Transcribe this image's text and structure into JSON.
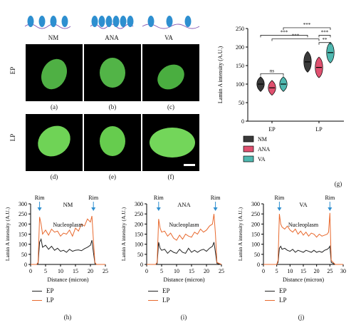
{
  "colors": {
    "ep_line": "#222222",
    "lp_line": "#e8692e",
    "cell_green": "#5ec24a",
    "nm": "#3a3a3a",
    "ana": "#e0506f",
    "va": "#4fb8b0",
    "chromatin": "#2e8fd0"
  },
  "conditions": [
    "NM",
    "ANA",
    "VA"
  ],
  "rows": [
    "EP",
    "LP"
  ],
  "image_labels": [
    "(a)",
    "(b)",
    "(c)",
    "(d)",
    "(e)",
    "(f)"
  ],
  "panel_g_label": "(g)",
  "profile_labels": [
    "(h)",
    "(i)",
    "(j)"
  ],
  "annotations": {
    "rim": "Rim",
    "nucleoplasm": "Nucleoplasm"
  },
  "chart_data": [
    {
      "type": "violin",
      "panel": "(g)",
      "ylabel": "Lamin A intensity (A.U.)",
      "categories": [
        "EP",
        "LP"
      ],
      "ylim": [
        0,
        250
      ],
      "yticks": [
        0,
        50,
        100,
        150,
        200,
        250
      ],
      "legend_placement": "bottom",
      "series": [
        {
          "name": "NM",
          "medians": [
            100,
            160
          ]
        },
        {
          "name": "ANA",
          "medians": [
            90,
            145
          ]
        },
        {
          "name": "VA",
          "medians": [
            100,
            185
          ]
        }
      ],
      "significance": [
        "ns",
        "**",
        "***",
        "***",
        "***",
        "***"
      ]
    },
    {
      "type": "line",
      "panel": "(h)",
      "title": "NM",
      "xlabel": "Distance (micron)",
      "ylabel": "Lamin A intensity (A.U.)",
      "xlim": [
        0,
        25
      ],
      "ylim": [
        0,
        300
      ],
      "xticks": [
        0,
        5,
        10,
        15,
        20,
        25
      ],
      "yticks": [
        0,
        50,
        100,
        150,
        200,
        250,
        300
      ],
      "rim_positions": [
        3,
        21
      ],
      "series": [
        {
          "name": "EP",
          "x": [
            0,
            1,
            2,
            2.5,
            3,
            3.5,
            4,
            5,
            6,
            7,
            8,
            9,
            10,
            11,
            12,
            13,
            14,
            15,
            16,
            17,
            18,
            19,
            20,
            20.5,
            21,
            21.5,
            22,
            24,
            25
          ],
          "y": [
            0,
            0,
            0,
            5,
            110,
            125,
            85,
            95,
            75,
            90,
            70,
            80,
            65,
            70,
            60,
            75,
            65,
            70,
            72,
            68,
            78,
            85,
            95,
            120,
            60,
            5,
            0,
            0,
            0
          ]
        },
        {
          "name": "LP",
          "x": [
            0,
            1,
            2,
            2.5,
            3,
            3.5,
            4,
            5,
            6,
            7,
            8,
            9,
            10,
            11,
            12,
            13,
            14,
            15,
            16,
            17,
            18,
            19,
            20,
            20.5,
            21,
            21.5,
            22,
            24,
            25
          ],
          "y": [
            0,
            0,
            0,
            10,
            235,
            200,
            150,
            170,
            145,
            175,
            160,
            165,
            140,
            155,
            150,
            170,
            140,
            180,
            165,
            200,
            190,
            225,
            210,
            240,
            120,
            10,
            0,
            0,
            0
          ]
        }
      ]
    },
    {
      "type": "line",
      "panel": "(i)",
      "title": "ANA",
      "xlabel": "Distance (micron)",
      "ylabel": "Lamin A intensity (A.U.)",
      "xlim": [
        0,
        25
      ],
      "ylim": [
        0,
        300
      ],
      "xticks": [
        0,
        5,
        10,
        15,
        20,
        25
      ],
      "yticks": [
        0,
        50,
        100,
        150,
        200,
        250,
        300
      ],
      "rim_positions": [
        4,
        23
      ],
      "series": [
        {
          "name": "EP",
          "x": [
            0,
            1,
            2,
            3,
            3.5,
            4,
            4.5,
            5,
            6,
            7,
            8,
            9,
            10,
            11,
            12,
            13,
            14,
            15,
            16,
            17,
            18,
            19,
            20,
            21,
            22,
            22.5,
            23,
            23.5,
            25
          ],
          "y": [
            0,
            0,
            0,
            0,
            5,
            110,
            80,
            70,
            75,
            55,
            70,
            60,
            55,
            75,
            60,
            55,
            80,
            60,
            70,
            60,
            70,
            75,
            65,
            80,
            90,
            110,
            60,
            5,
            0
          ]
        },
        {
          "name": "LP",
          "x": [
            0,
            1,
            2,
            3,
            3.5,
            4,
            4.5,
            5,
            6,
            7,
            8,
            9,
            10,
            11,
            12,
            13,
            14,
            15,
            16,
            17,
            18,
            19,
            20,
            21,
            22,
            22.5,
            23,
            23.5,
            25
          ],
          "y": [
            0,
            0,
            0,
            0,
            10,
            225,
            180,
            160,
            165,
            140,
            155,
            130,
            120,
            145,
            125,
            150,
            140,
            135,
            160,
            150,
            175,
            160,
            170,
            190,
            200,
            250,
            150,
            10,
            0
          ]
        }
      ]
    },
    {
      "type": "line",
      "panel": "(j)",
      "title": "VA",
      "xlabel": "Distance (micron)",
      "ylabel": "Lamin A intensity (A.U.)",
      "xlim": [
        0,
        30
      ],
      "ylim": [
        0,
        300
      ],
      "xticks": [
        0,
        5,
        10,
        15,
        20,
        25,
        30
      ],
      "yticks": [
        0,
        50,
        100,
        150,
        200,
        250,
        300
      ],
      "rim_positions": [
        6,
        25
      ],
      "series": [
        {
          "name": "EP",
          "x": [
            0,
            2,
            4,
            5,
            5.5,
            6,
            6.5,
            7,
            8,
            9,
            10,
            11,
            12,
            13,
            14,
            15,
            16,
            17,
            18,
            19,
            20,
            21,
            22,
            23,
            24,
            24.5,
            25,
            25.5,
            27,
            30
          ],
          "y": [
            0,
            0,
            0,
            0,
            10,
            80,
            90,
            75,
            80,
            70,
            65,
            75,
            60,
            70,
            65,
            60,
            70,
            65,
            60,
            70,
            60,
            65,
            60,
            70,
            75,
            80,
            90,
            10,
            0,
            0
          ]
        },
        {
          "name": "LP",
          "x": [
            0,
            2,
            4,
            5,
            5.5,
            6,
            6.5,
            7,
            8,
            9,
            10,
            11,
            12,
            13,
            14,
            15,
            16,
            17,
            18,
            19,
            20,
            21,
            22,
            23,
            24,
            24.5,
            25,
            25.5,
            27,
            30
          ],
          "y": [
            0,
            0,
            0,
            0,
            20,
            250,
            200,
            185,
            175,
            190,
            170,
            160,
            175,
            150,
            165,
            145,
            160,
            140,
            155,
            150,
            135,
            150,
            140,
            145,
            150,
            160,
            255,
            20,
            0,
            0
          ]
        }
      ]
    }
  ]
}
